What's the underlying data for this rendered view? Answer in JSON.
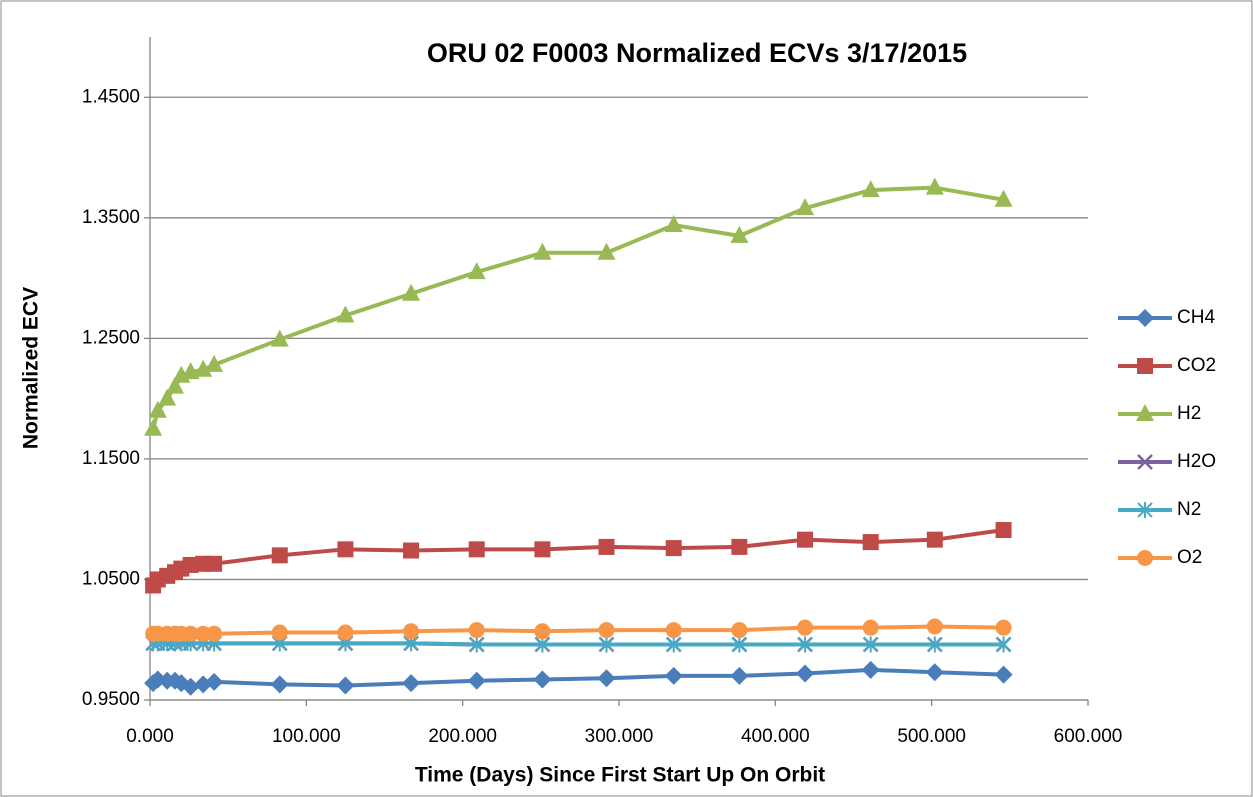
{
  "chart_data": {
    "type": "line",
    "title": "ORU 02 F0003 Normalized ECVs 3/17/2015",
    "xlabel": "Time (Days) Since First Start Up On Orbit",
    "ylabel": "Normalized ECV",
    "x": [
      2,
      5,
      11,
      16,
      20,
      26,
      34,
      41,
      83,
      125,
      167,
      209,
      251,
      292,
      335,
      377,
      419,
      461,
      502,
      546
    ],
    "series": [
      {
        "name": "CH4",
        "color": "#4a7ebb",
        "marker": "diamond",
        "values": [
          0.964,
          0.967,
          0.966,
          0.966,
          0.964,
          0.961,
          0.963,
          0.965,
          0.963,
          0.962,
          0.964,
          0.966,
          0.967,
          0.968,
          0.97,
          0.97,
          0.972,
          0.975,
          0.973,
          0.971
        ]
      },
      {
        "name": "CO2",
        "color": "#be4b48",
        "marker": "square",
        "values": [
          1.045,
          1.05,
          1.053,
          1.056,
          1.059,
          1.062,
          1.063,
          1.063,
          1.07,
          1.075,
          1.074,
          1.075,
          1.075,
          1.077,
          1.076,
          1.077,
          1.083,
          1.081,
          1.083,
          1.091
        ]
      },
      {
        "name": "H2",
        "color": "#98b954",
        "marker": "triangle",
        "values": [
          1.175,
          1.19,
          1.2,
          1.21,
          1.219,
          1.222,
          1.224,
          1.228,
          1.249,
          1.269,
          1.287,
          1.305,
          1.321,
          1.321,
          1.344,
          1.335,
          1.358,
          1.373,
          1.375,
          1.365
        ]
      },
      {
        "name": "H2O",
        "color": "#7d60a0",
        "marker": "x",
        "values": [
          0.997,
          0.997,
          0.997,
          0.997,
          0.997,
          0.997,
          0.997,
          0.997,
          0.997,
          0.997,
          0.997,
          0.996,
          0.996,
          0.996,
          0.996,
          0.996,
          0.996,
          0.996,
          0.996,
          0.996
        ]
      },
      {
        "name": "N2",
        "color": "#46aac5",
        "marker": "star",
        "values": [
          0.997,
          0.997,
          0.997,
          0.997,
          0.997,
          0.997,
          0.997,
          0.997,
          0.997,
          0.997,
          0.997,
          0.996,
          0.996,
          0.996,
          0.996,
          0.996,
          0.996,
          0.996,
          0.996,
          0.996
        ]
      },
      {
        "name": "O2",
        "color": "#f79646",
        "marker": "circle",
        "values": [
          1.005,
          1.005,
          1.005,
          1.005,
          1.005,
          1.005,
          1.005,
          1.005,
          1.006,
          1.006,
          1.007,
          1.008,
          1.007,
          1.008,
          1.008,
          1.008,
          1.01,
          1.01,
          1.011,
          1.01
        ]
      }
    ],
    "xlim": [
      0,
      600
    ],
    "xticks": [
      {
        "value": 0,
        "label": "0.000"
      },
      {
        "value": 100,
        "label": "100.000"
      },
      {
        "value": 200,
        "label": "200.000"
      },
      {
        "value": 300,
        "label": "300.000"
      },
      {
        "value": 400,
        "label": "400.000"
      },
      {
        "value": 500,
        "label": "500.000"
      },
      {
        "value": 600,
        "label": "600.000"
      }
    ],
    "ylim": [
      0.95,
      1.5
    ],
    "yticks": [
      {
        "value": 0.95,
        "label": "0.9500"
      },
      {
        "value": 1.05,
        "label": "1.0500"
      },
      {
        "value": 1.15,
        "label": "1.1500"
      },
      {
        "value": 1.25,
        "label": "1.2500"
      },
      {
        "value": 1.35,
        "label": "1.3500"
      },
      {
        "value": 1.45,
        "label": "1.4500"
      }
    ],
    "grid": true,
    "legend": "right"
  }
}
